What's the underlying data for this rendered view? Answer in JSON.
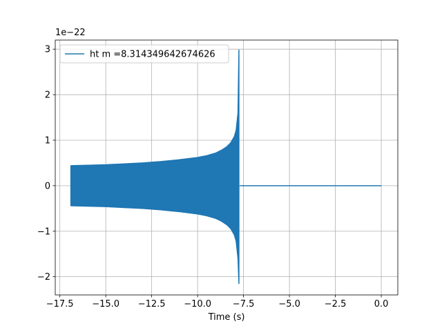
{
  "chart_data": {
    "type": "line",
    "title": "",
    "xlabel": "Time (s)",
    "ylabel": "",
    "xlim": [
      -17.75,
      0.9
    ],
    "ylim": [
      -2.4,
      3.2
    ],
    "y_offset_label": "1e−22",
    "y_scale_exponent": -22,
    "grid": true,
    "legend": {
      "placement": "top-left",
      "entries": [
        "ht m =8.314349642674626"
      ]
    },
    "x_ticks": [
      {
        "value": -17.5,
        "label": "−17.5"
      },
      {
        "value": -15.0,
        "label": "−15.0"
      },
      {
        "value": -12.5,
        "label": "−12.5"
      },
      {
        "value": -10.0,
        "label": "−10.0"
      },
      {
        "value": -7.5,
        "label": "−7.5"
      },
      {
        "value": -5.0,
        "label": "−5.0"
      },
      {
        "value": -2.5,
        "label": "−2.5"
      },
      {
        "value": 0.0,
        "label": "0.0"
      }
    ],
    "y_ticks": [
      {
        "value": -2,
        "label": "−2"
      },
      {
        "value": -1,
        "label": "−1"
      },
      {
        "value": 0,
        "label": "0"
      },
      {
        "value": 1,
        "label": "1"
      },
      {
        "value": 2,
        "label": "2"
      },
      {
        "value": 3,
        "label": "3"
      }
    ],
    "series": [
      {
        "name": "ht m =8.314349642674626",
        "color": "#1f77b4",
        "envelope": {
          "x": [
            -16.9,
            -16.0,
            -15.0,
            -14.0,
            -13.0,
            -12.0,
            -11.0,
            -10.0,
            -9.5,
            -9.0,
            -8.7,
            -8.4,
            -8.2,
            -8.0,
            -7.9,
            -7.8,
            -7.75
          ],
          "upper": [
            0.44,
            0.45,
            0.46,
            0.48,
            0.5,
            0.53,
            0.57,
            0.62,
            0.66,
            0.72,
            0.78,
            0.86,
            0.94,
            1.08,
            1.22,
            1.6,
            2.98
          ],
          "lower": [
            -0.44,
            -0.45,
            -0.46,
            -0.48,
            -0.5,
            -0.53,
            -0.57,
            -0.62,
            -0.66,
            -0.72,
            -0.78,
            -0.86,
            -0.94,
            -1.08,
            -1.22,
            -1.6,
            -2.15
          ]
        },
        "post_merger": {
          "x": [
            -7.7,
            0.0
          ],
          "y": [
            0.0,
            0.0
          ]
        }
      }
    ]
  }
}
